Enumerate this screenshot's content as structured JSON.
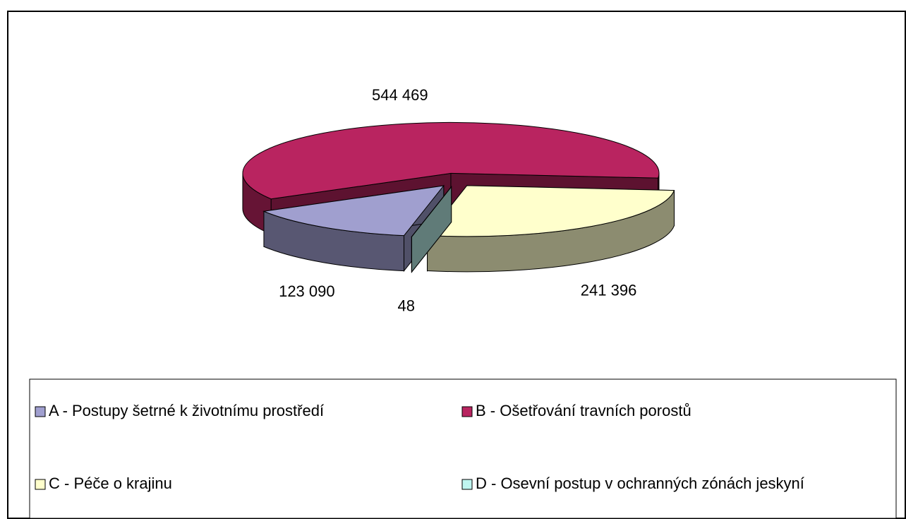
{
  "chart_data": {
    "type": "pie3d",
    "categories": [
      "A - Postupy šetrné k životnímu prostředí",
      "B - Ošetřování travních porostů",
      "C - Péče o krajinu",
      "D - Osevní postup v ochranných zónách jeskyní"
    ],
    "values": [
      123090,
      544469,
      241396,
      48
    ],
    "value_labels": [
      "123 090",
      "544 469",
      "241 396",
      "48"
    ],
    "colors": [
      "#a09fcf",
      "#b92460",
      "#ffffcc",
      "#bff5f0"
    ],
    "legend": "bottom"
  }
}
